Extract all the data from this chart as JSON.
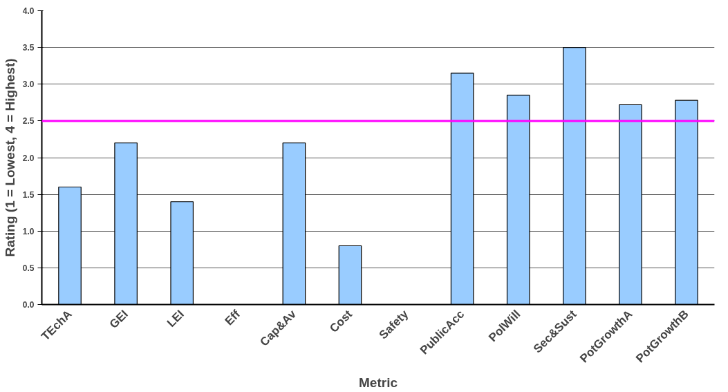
{
  "chart_data": {
    "type": "bar",
    "xlabel": "Metric",
    "ylabel": "Rating (1 = Lowest, 4 = Highest)",
    "categories": [
      "TEchA",
      "GEI",
      "LEI",
      "Eff",
      "Cap&Av",
      "Cost",
      "Safety",
      "PublicAcc",
      "PolWill",
      "Sec&Sust",
      "PotGrowthA",
      "PotGrowthB"
    ],
    "values": [
      1.6,
      2.2,
      1.4,
      null,
      2.2,
      0.8,
      null,
      3.15,
      2.85,
      3.5,
      2.72,
      2.78
    ],
    "color": "#99ccff",
    "ylim": [
      0,
      4
    ],
    "yticks": [
      {
        "value": 0,
        "label": "0.0"
      },
      {
        "value": 0.5,
        "label": "0.5"
      },
      {
        "value": 1,
        "label": "1.0"
      },
      {
        "value": 1.5,
        "label": "1.5"
      },
      {
        "value": 2,
        "label": "2.0"
      },
      {
        "value": 2.5,
        "label": "2.5"
      },
      {
        "value": 3,
        "label": "3.0"
      },
      {
        "value": 3.5,
        "label": "3.5"
      },
      {
        "value": 4,
        "label": "4.0"
      }
    ],
    "grid": "y",
    "ref_lines": [
      {
        "axis": "y",
        "value": 2.5,
        "color": "#ff00ff"
      }
    ]
  }
}
